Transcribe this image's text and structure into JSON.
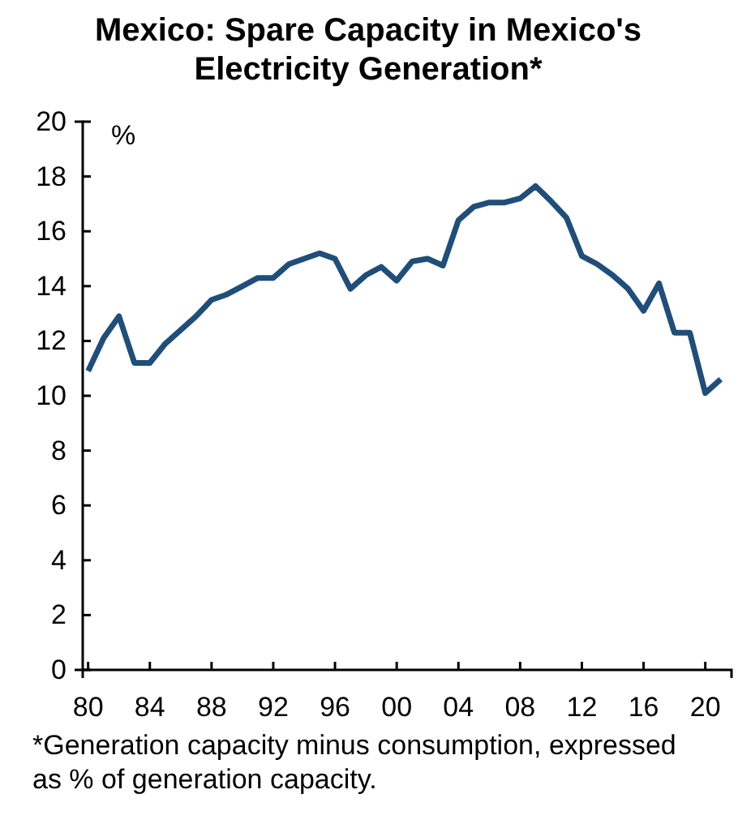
{
  "chart_data": {
    "type": "line",
    "title": "Mexico: Spare Capacity in Mexico's Electricity Generation*",
    "ylabel": "%",
    "x": [
      1980,
      1981,
      1982,
      1983,
      1984,
      1985,
      1986,
      1987,
      1988,
      1989,
      1990,
      1991,
      1992,
      1993,
      1994,
      1995,
      1996,
      1997,
      1998,
      1999,
      2000,
      2001,
      2002,
      2003,
      2004,
      2005,
      2006,
      2007,
      2008,
      2009,
      2010,
      2011,
      2012,
      2013,
      2014,
      2015,
      2016,
      2017,
      2018,
      2019,
      2020,
      2021
    ],
    "series": [
      {
        "color": "#1f4e79",
        "values": [
          10.9,
          12.1,
          12.9,
          11.2,
          11.2,
          11.9,
          12.4,
          12.9,
          13.5,
          13.7,
          14.0,
          14.3,
          14.3,
          14.8,
          15.0,
          15.2,
          15.0,
          13.9,
          14.4,
          14.7,
          14.2,
          14.9,
          15.0,
          14.75,
          16.4,
          16.9,
          17.05,
          17.05,
          17.2,
          17.65,
          17.1,
          16.5,
          15.1,
          14.8,
          14.4,
          13.9,
          13.1,
          14.1,
          12.3,
          12.3,
          10.1,
          10.6
        ]
      }
    ],
    "xlim": [
      1979.65,
      2021.7
    ],
    "xticks": [
      {
        "value": 1980,
        "label": "80"
      },
      {
        "value": 1984,
        "label": "84"
      },
      {
        "value": 1988,
        "label": "88"
      },
      {
        "value": 1992,
        "label": "92"
      },
      {
        "value": 1996,
        "label": "96"
      },
      {
        "value": 2000,
        "label": "00"
      },
      {
        "value": 2004,
        "label": "04"
      },
      {
        "value": 2008,
        "label": "08"
      },
      {
        "value": 2012,
        "label": "12"
      },
      {
        "value": 2016,
        "label": "16"
      },
      {
        "value": 2020,
        "label": "20"
      }
    ],
    "ylim": [
      0,
      20
    ],
    "yticks": [
      0,
      2,
      4,
      6,
      8,
      10,
      12,
      14,
      16,
      18,
      20
    ],
    "grid": false,
    "marker": "none",
    "line_style": "solid",
    "annotations": [
      "*Generation capacity minus consumption, expressed as % of generation capacity."
    ]
  }
}
